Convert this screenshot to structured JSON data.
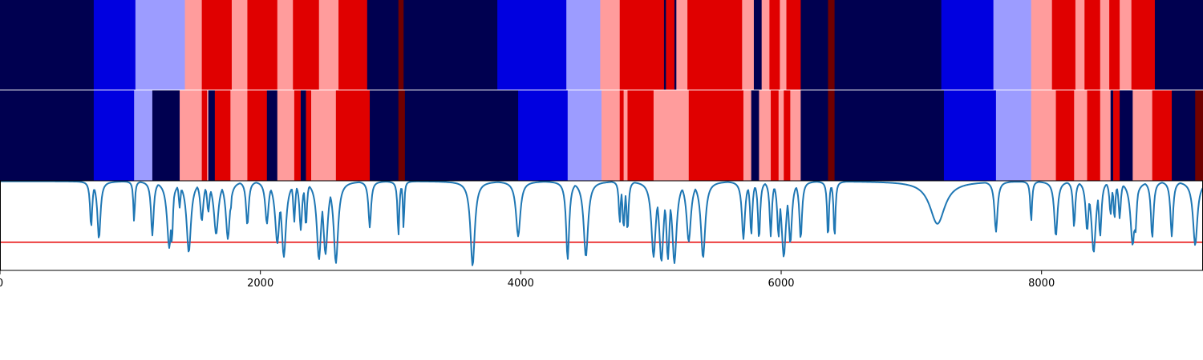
{
  "chart_data": [
    {
      "type": "heatmap",
      "name": "state-track-top",
      "x_range": [
        0,
        9240
      ],
      "colors": {
        "0": "#000050",
        "1": "#0000e0",
        "2": "#9c9cff",
        "3": "#ff9c9c",
        "4": "#e00000",
        "5": "#700000"
      },
      "segments": [
        [
          0,
          720,
          0
        ],
        [
          720,
          1040,
          1
        ],
        [
          1040,
          1420,
          2
        ],
        [
          1420,
          1550,
          3
        ],
        [
          1550,
          1780,
          4
        ],
        [
          1780,
          1900,
          3
        ],
        [
          1900,
          2130,
          4
        ],
        [
          2130,
          2250,
          3
        ],
        [
          2250,
          2450,
          4
        ],
        [
          2450,
          2600,
          3
        ],
        [
          2600,
          2820,
          4
        ],
        [
          2820,
          3060,
          0
        ],
        [
          3060,
          3100,
          5
        ],
        [
          3100,
          3820,
          0
        ],
        [
          3820,
          4350,
          1
        ],
        [
          4350,
          4610,
          2
        ],
        [
          4610,
          4760,
          3
        ],
        [
          4760,
          5100,
          4
        ],
        [
          5100,
          5115,
          0
        ],
        [
          5115,
          5180,
          4
        ],
        [
          5180,
          5195,
          0
        ],
        [
          5195,
          5280,
          3
        ],
        [
          5280,
          5700,
          4
        ],
        [
          5700,
          5790,
          3
        ],
        [
          5790,
          5850,
          0
        ],
        [
          5850,
          5910,
          3
        ],
        [
          5910,
          5990,
          4
        ],
        [
          5990,
          6040,
          3
        ],
        [
          6040,
          6150,
          4
        ],
        [
          6150,
          6360,
          0
        ],
        [
          6360,
          6410,
          5
        ],
        [
          6410,
          7230,
          0
        ],
        [
          7230,
          7630,
          1
        ],
        [
          7630,
          7920,
          2
        ],
        [
          7920,
          8080,
          3
        ],
        [
          8080,
          8260,
          4
        ],
        [
          8260,
          8330,
          3
        ],
        [
          8330,
          8450,
          4
        ],
        [
          8450,
          8520,
          3
        ],
        [
          8520,
          8600,
          4
        ],
        [
          8600,
          8690,
          3
        ],
        [
          8690,
          8870,
          4
        ],
        [
          8870,
          9240,
          0
        ]
      ]
    },
    {
      "type": "heatmap",
      "name": "state-track-bottom",
      "x_range": [
        0,
        9240
      ],
      "colors": {
        "0": "#000050",
        "1": "#0000e0",
        "2": "#9c9cff",
        "3": "#ff9c9c",
        "4": "#e00000",
        "5": "#700000"
      },
      "segments": [
        [
          0,
          720,
          0
        ],
        [
          720,
          1030,
          1
        ],
        [
          1030,
          1170,
          2
        ],
        [
          1170,
          1380,
          0
        ],
        [
          1380,
          1550,
          3
        ],
        [
          1550,
          1590,
          4
        ],
        [
          1590,
          1600,
          3
        ],
        [
          1600,
          1650,
          0
        ],
        [
          1650,
          1770,
          4
        ],
        [
          1770,
          1900,
          3
        ],
        [
          1900,
          2050,
          4
        ],
        [
          2050,
          2130,
          0
        ],
        [
          2130,
          2260,
          3
        ],
        [
          2260,
          2310,
          4
        ],
        [
          2310,
          2350,
          0
        ],
        [
          2350,
          2390,
          4
        ],
        [
          2390,
          2440,
          3
        ],
        [
          2440,
          2580,
          3
        ],
        [
          2580,
          2840,
          4
        ],
        [
          2840,
          3060,
          0
        ],
        [
          3060,
          3110,
          5
        ],
        [
          3110,
          3980,
          0
        ],
        [
          3980,
          4360,
          1
        ],
        [
          4360,
          4620,
          2
        ],
        [
          4620,
          4760,
          3
        ],
        [
          4760,
          4790,
          4
        ],
        [
          4790,
          4820,
          3
        ],
        [
          4820,
          5020,
          4
        ],
        [
          5020,
          5290,
          3
        ],
        [
          5290,
          5710,
          4
        ],
        [
          5710,
          5770,
          3
        ],
        [
          5770,
          5830,
          0
        ],
        [
          5830,
          5920,
          3
        ],
        [
          5920,
          5980,
          4
        ],
        [
          5980,
          6020,
          3
        ],
        [
          6020,
          6070,
          4
        ],
        [
          6070,
          6150,
          3
        ],
        [
          6150,
          6360,
          0
        ],
        [
          6360,
          6410,
          5
        ],
        [
          6410,
          7250,
          0
        ],
        [
          7250,
          7650,
          1
        ],
        [
          7650,
          7920,
          2
        ],
        [
          7920,
          8110,
          3
        ],
        [
          8110,
          8250,
          4
        ],
        [
          8250,
          8350,
          3
        ],
        [
          8350,
          8450,
          4
        ],
        [
          8450,
          8530,
          3
        ],
        [
          8530,
          8550,
          0
        ],
        [
          8550,
          8600,
          4
        ],
        [
          8600,
          8700,
          0
        ],
        [
          8700,
          8720,
          3
        ],
        [
          8720,
          8850,
          3
        ],
        [
          8850,
          9000,
          4
        ],
        [
          9000,
          9180,
          0
        ],
        [
          9180,
          9240,
          5
        ]
      ]
    },
    {
      "type": "line",
      "name": "signal-track",
      "xlim": [
        0,
        9240
      ],
      "ylim": [
        0,
        1
      ],
      "x_ticks": [
        0,
        2000,
        4000,
        6000,
        8000
      ],
      "x_tick_labels": [
        "0",
        "2000",
        "4000",
        "6000",
        "8000"
      ],
      "xlabel": "",
      "ylabel": "",
      "series": [
        {
          "color": "#1f77b4",
          "baseline": 0.995,
          "dips": [
            [
              700,
              0.48,
              10
            ],
            [
              760,
              0.35,
              14
            ],
            [
              1030,
              0.54,
              7
            ],
            [
              1170,
              0.39,
              12
            ],
            [
              1300,
              0.25,
              20
            ],
            [
              1320,
              0.3,
              10
            ],
            [
              1380,
              0.7,
              9
            ],
            [
              1450,
              0.2,
              20
            ],
            [
              1550,
              0.55,
              14
            ],
            [
              1600,
              0.65,
              12
            ],
            [
              1660,
              0.4,
              20
            ],
            [
              1750,
              0.35,
              18
            ],
            [
              1770,
              0.65,
              10
            ],
            [
              1900,
              0.5,
              12
            ],
            [
              2050,
              0.52,
              15
            ],
            [
              2130,
              0.3,
              20
            ],
            [
              2180,
              0.15,
              20
            ],
            [
              2260,
              0.54,
              9
            ],
            [
              2310,
              0.45,
              12
            ],
            [
              2350,
              0.48,
              9
            ],
            [
              2450,
              0.12,
              20
            ],
            [
              2500,
              0.18,
              20
            ],
            [
              2580,
              0.08,
              20
            ],
            [
              2840,
              0.48,
              12
            ],
            [
              3060,
              0.38,
              8
            ],
            [
              3100,
              0.45,
              6
            ],
            [
              3630,
              0.05,
              20
            ],
            [
              3980,
              0.38,
              20
            ],
            [
              4360,
              0.12,
              14
            ],
            [
              4500,
              0.15,
              20
            ],
            [
              4760,
              0.52,
              8
            ],
            [
              4790,
              0.47,
              10
            ],
            [
              4820,
              0.43,
              9
            ],
            [
              5020,
              0.15,
              20
            ],
            [
              5080,
              0.1,
              20
            ],
            [
              5130,
              0.12,
              15
            ],
            [
              5180,
              0.08,
              20
            ],
            [
              5290,
              0.32,
              20
            ],
            [
              5400,
              0.14,
              20
            ],
            [
              5710,
              0.35,
              14
            ],
            [
              5770,
              0.39,
              10
            ],
            [
              5830,
              0.34,
              10
            ],
            [
              5920,
              0.38,
              10
            ],
            [
              5980,
              0.37,
              12
            ],
            [
              6020,
              0.15,
              20
            ],
            [
              6070,
              0.3,
              15
            ],
            [
              6150,
              0.35,
              12
            ],
            [
              6360,
              0.35,
              8
            ],
            [
              6410,
              0.35,
              8
            ],
            [
              7200,
              0.52,
              70
            ],
            [
              7650,
              0.43,
              14
            ],
            [
              7920,
              0.54,
              8
            ],
            [
              8110,
              0.38,
              15
            ],
            [
              8250,
              0.48,
              10
            ],
            [
              8350,
              0.44,
              14
            ],
            [
              8400,
              0.2,
              20
            ],
            [
              8450,
              0.38,
              12
            ],
            [
              8530,
              0.62,
              10
            ],
            [
              8560,
              0.56,
              8
            ],
            [
              8600,
              0.58,
              10
            ],
            [
              8700,
              0.28,
              20
            ],
            [
              8720,
              0.4,
              12
            ],
            [
              8850,
              0.36,
              12
            ],
            [
              9000,
              0.38,
              12
            ],
            [
              9180,
              0.28,
              20
            ]
          ]
        }
      ],
      "threshold": {
        "y": 0.315,
        "color": "#e60000"
      }
    }
  ]
}
